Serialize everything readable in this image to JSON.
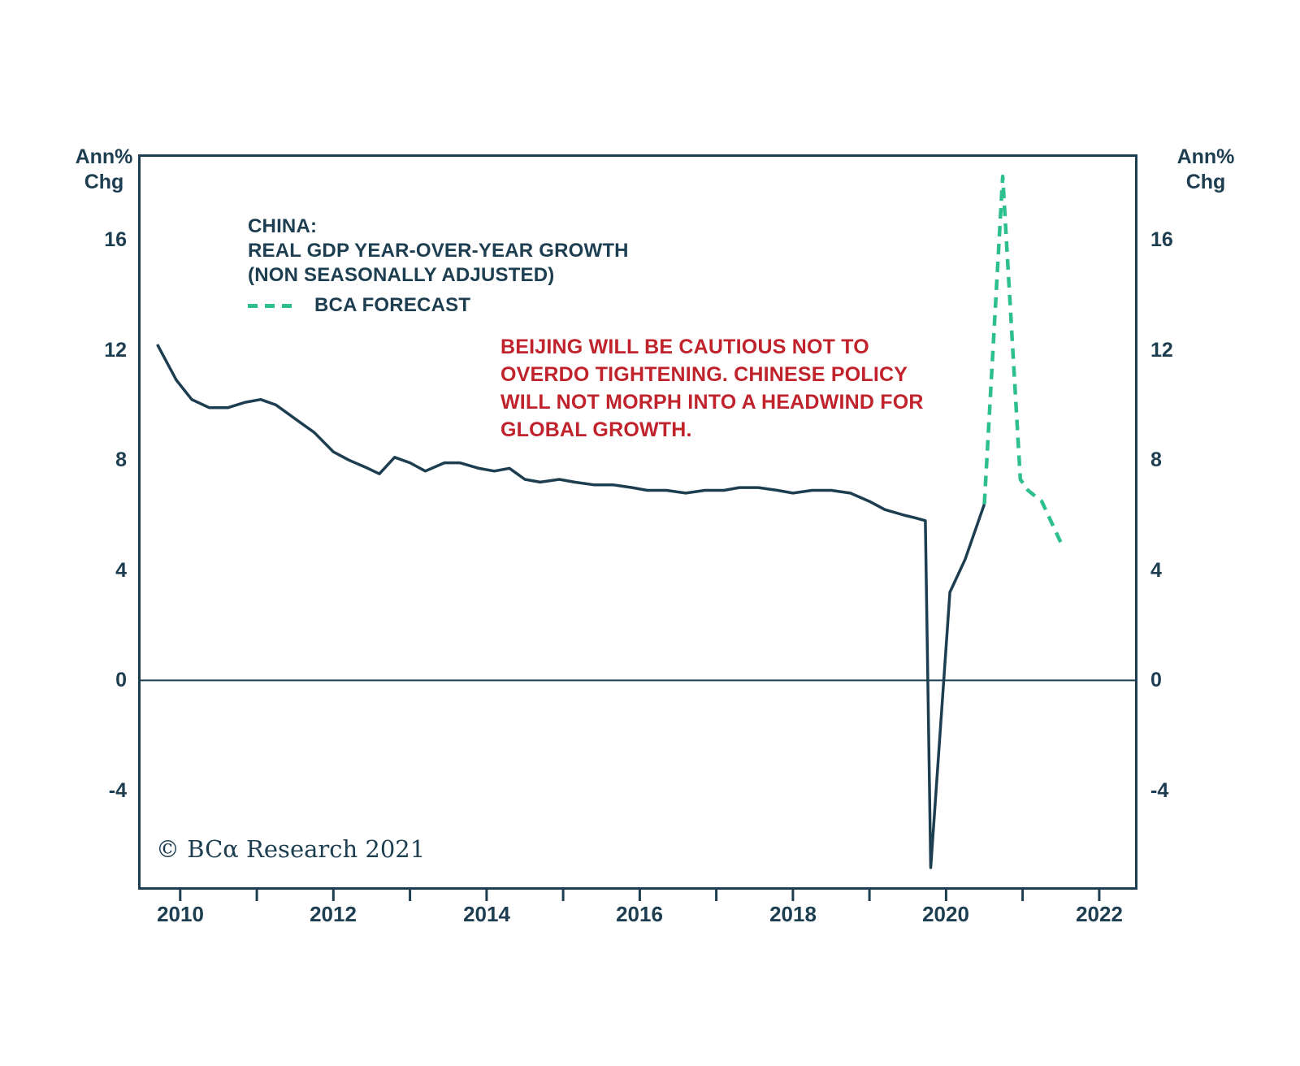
{
  "colors": {
    "ink": "#1d3e50",
    "annotation_red": "#c0232c",
    "forecast_green": "#2ebf8e",
    "background": "#ffffff"
  },
  "chart_data": {
    "type": "line",
    "title_lines": [
      "CHINA:",
      "REAL GDP YEAR-OVER-YEAR GROWTH",
      "(NON SEASONALLY ADJUSTED)"
    ],
    "legend_label": "BCA FORECAST",
    "annotation_lines": [
      "BEIJING WILL BE CAUTIOUS NOT TO",
      "OVERDO TIGHTENING. CHINESE POLICY",
      "WILL NOT MORPH INTO A HEADWIND FOR",
      "GLOBAL GROWTH."
    ],
    "ylabel_lines": [
      "Ann%",
      "Chg"
    ],
    "copyright": "© BCα Research 2021",
    "x_range": [
      2009.45,
      2022.5
    ],
    "y_range": [
      -7.6,
      19.1
    ],
    "grid": false,
    "zero_line": true,
    "legend_position": "top-left",
    "y_ticks": [
      {
        "v": 16,
        "label": "16"
      },
      {
        "v": 12,
        "label": "12"
      },
      {
        "v": 8,
        "label": "8"
      },
      {
        "v": 4,
        "label": "4"
      },
      {
        "v": 0,
        "label": "0"
      },
      {
        "v": -4,
        "label": "-4"
      }
    ],
    "x_ticks": [
      {
        "v": 2010,
        "label": "2010"
      },
      {
        "v": 2011,
        "label": ""
      },
      {
        "v": 2012,
        "label": "2012"
      },
      {
        "v": 2013,
        "label": ""
      },
      {
        "v": 2014,
        "label": "2014"
      },
      {
        "v": 2015,
        "label": ""
      },
      {
        "v": 2016,
        "label": "2016"
      },
      {
        "v": 2017,
        "label": ""
      },
      {
        "v": 2018,
        "label": "2018"
      },
      {
        "v": 2019,
        "label": ""
      },
      {
        "v": 2020,
        "label": "2020"
      },
      {
        "v": 2021,
        "label": ""
      },
      {
        "v": 2022,
        "label": "2022"
      }
    ],
    "series": [
      {
        "name": "China real GDP year-over-year growth (NSA)",
        "style": "solid",
        "color": "#1d3e50",
        "points": [
          [
            2009.7,
            12.2
          ],
          [
            2009.95,
            10.9
          ],
          [
            2010.15,
            10.2
          ],
          [
            2010.38,
            9.9
          ],
          [
            2010.62,
            9.9
          ],
          [
            2010.85,
            10.1
          ],
          [
            2011.05,
            10.2
          ],
          [
            2011.25,
            10.0
          ],
          [
            2011.5,
            9.5
          ],
          [
            2011.75,
            9.0
          ],
          [
            2012.0,
            8.3
          ],
          [
            2012.2,
            8.0
          ],
          [
            2012.45,
            7.7
          ],
          [
            2012.6,
            7.5
          ],
          [
            2012.8,
            8.1
          ],
          [
            2013.0,
            7.9
          ],
          [
            2013.2,
            7.6
          ],
          [
            2013.45,
            7.9
          ],
          [
            2013.65,
            7.9
          ],
          [
            2013.9,
            7.7
          ],
          [
            2014.1,
            7.6
          ],
          [
            2014.3,
            7.7
          ],
          [
            2014.5,
            7.3
          ],
          [
            2014.7,
            7.2
          ],
          [
            2014.95,
            7.3
          ],
          [
            2015.15,
            7.2
          ],
          [
            2015.4,
            7.1
          ],
          [
            2015.65,
            7.1
          ],
          [
            2015.9,
            7.0
          ],
          [
            2016.1,
            6.9
          ],
          [
            2016.35,
            6.9
          ],
          [
            2016.6,
            6.8
          ],
          [
            2016.85,
            6.9
          ],
          [
            2017.1,
            6.9
          ],
          [
            2017.3,
            7.0
          ],
          [
            2017.55,
            7.0
          ],
          [
            2017.8,
            6.9
          ],
          [
            2018.0,
            6.8
          ],
          [
            2018.25,
            6.9
          ],
          [
            2018.5,
            6.9
          ],
          [
            2018.75,
            6.8
          ],
          [
            2019.0,
            6.5
          ],
          [
            2019.2,
            6.2
          ],
          [
            2019.45,
            6.0
          ],
          [
            2019.6,
            5.9
          ],
          [
            2019.73,
            5.8
          ],
          [
            2019.8,
            -6.8
          ],
          [
            2020.05,
            3.2
          ],
          [
            2020.25,
            4.4
          ],
          [
            2020.5,
            6.4
          ]
        ]
      },
      {
        "name": "BCA forecast",
        "style": "dashed",
        "color": "#2ebf8e",
        "points": [
          [
            2020.5,
            6.4
          ],
          [
            2020.74,
            18.3
          ],
          [
            2020.97,
            7.3
          ],
          [
            2021.07,
            6.9
          ],
          [
            2021.25,
            6.5
          ],
          [
            2021.5,
            5.0
          ]
        ]
      }
    ]
  }
}
